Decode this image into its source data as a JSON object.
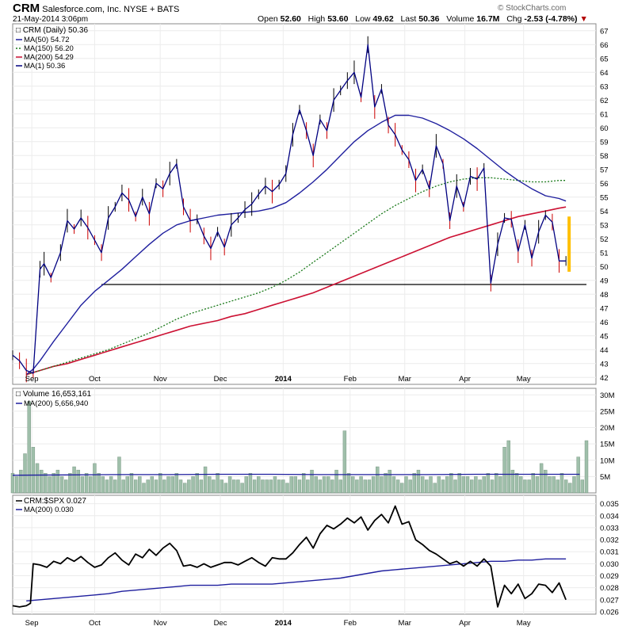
{
  "header": {
    "symbol": "CRM",
    "company": "Salesforce.com, Inc.  NYSE + BATS",
    "timestamp": "21-May-2014 3:06pm",
    "watermark": "© StockCharts.com",
    "open_label": "Open",
    "open": "52.60",
    "high_label": "High",
    "high": "53.60",
    "low_label": "Low",
    "low": "49.62",
    "last_label": "Last",
    "last": "50.36",
    "volume_label": "Volume",
    "volume": "16.7M",
    "chg_label": "Chg",
    "chg": "-2.53 (-4.78%)",
    "chg_arrow": "▼"
  },
  "colors": {
    "price": "#000080",
    "price_up": "#000000",
    "price_down": "#cc0000",
    "ma50": "#1f1f9e",
    "ma150": "#1a7a1a",
    "ma200": "#cc1133",
    "volume_bar": "#9fbfaa",
    "volume_ma": "#1f1f9e",
    "ratio": "#000000",
    "ratio_ma": "#1f1f9e",
    "support": "#000000",
    "highlight": "#ffbf00"
  },
  "chart_data": [
    {
      "type": "line",
      "title": "CRM (Daily) 50.36",
      "legend": [
        {
          "label": "MA(50) 54.72",
          "color": "#1f1f9e",
          "style": "solid"
        },
        {
          "label": "MA(150) 56.20",
          "color": "#1a7a1a",
          "style": "dotted"
        },
        {
          "label": "MA(200) 54.29",
          "color": "#cc1133",
          "style": "solid"
        },
        {
          "label": "MA(1) 50.36",
          "color": "#000080",
          "style": "solid"
        }
      ],
      "ylim": [
        41.5,
        67.5
      ],
      "y_ticks": [
        42,
        43,
        44,
        45,
        46,
        47,
        48,
        49,
        50,
        51,
        52,
        53,
        54,
        55,
        56,
        57,
        58,
        59,
        60,
        61,
        62,
        63,
        64,
        65,
        66,
        67
      ],
      "x_axis": {
        "range": [
          0,
          42
        ],
        "ticks": [
          {
            "label": "Sep",
            "x": 1.4
          },
          {
            "label": "Oct",
            "x": 6.0
          },
          {
            "label": "Nov",
            "x": 10.8
          },
          {
            "label": "Dec",
            "x": 15.2
          },
          {
            "label": "2014",
            "x": 19.8
          },
          {
            "label": "Feb",
            "x": 24.7
          },
          {
            "label": "Mar",
            "x": 28.7
          },
          {
            "label": "Apr",
            "x": 33.1
          },
          {
            "label": "May",
            "x": 37.4
          }
        ]
      },
      "series": [
        {
          "name": "MA(1) 50.36",
          "x": [
            0,
            0.5,
            1,
            1.5,
            2,
            2.3,
            2.8,
            3.5,
            4,
            4.5,
            5,
            5.5,
            6,
            6.5,
            7,
            7.5,
            8,
            8.5,
            9,
            9.5,
            10,
            10.5,
            11,
            11.5,
            12,
            12.5,
            13,
            13.5,
            14,
            14.5,
            15,
            15.5,
            16,
            16.5,
            17,
            17.5,
            18,
            18.5,
            19,
            19.5,
            20,
            20.5,
            21,
            21.5,
            22,
            22.5,
            23,
            23.5,
            24,
            24.5,
            25,
            25.5,
            26,
            26.5,
            27,
            27.5,
            28,
            28.5,
            29,
            29.5,
            30,
            30.5,
            31,
            31.5,
            32,
            32.5,
            33,
            33.5,
            34,
            34.5,
            35,
            35.5,
            36,
            36.5,
            37,
            37.5,
            38,
            38.5,
            39,
            39.5,
            40,
            40.5
          ],
          "values": [
            43.6,
            43.2,
            42.5,
            42.3,
            49.8,
            50.2,
            49.2,
            51.0,
            53.3,
            52.7,
            53.5,
            52.8,
            51.9,
            51.0,
            53.5,
            54.3,
            55.3,
            54.8,
            53.6,
            55.0,
            53.8,
            56.0,
            55.6,
            56.7,
            57.4,
            54.3,
            53.3,
            53.4,
            52.2,
            51.3,
            52.5,
            51.4,
            53.0,
            53.5,
            54.1,
            54.5,
            55.2,
            55.8,
            55.4,
            55.9,
            56.7,
            59.5,
            61.3,
            59.8,
            58.0,
            60.6,
            59.8,
            62.0,
            62.7,
            63.4,
            64.0,
            62.2,
            66.0,
            61.5,
            62.8,
            60.2,
            59.5,
            58.4,
            57.7,
            56.2,
            57.0,
            55.6,
            58.7,
            57.4,
            53.3,
            55.8,
            54.3,
            56.5,
            56.3,
            57.1,
            48.8,
            51.6,
            53.5,
            53.4,
            51.1,
            53.0,
            50.6,
            52.5,
            53.7,
            53.2,
            50.4,
            50.4
          ]
        },
        {
          "name": "MA(50) 54.72",
          "x": [
            1,
            1.5,
            2,
            2.5,
            3,
            4,
            5,
            6,
            7,
            8,
            9,
            10,
            11,
            12,
            13,
            14,
            15,
            16,
            17,
            18,
            19,
            20,
            21,
            22,
            23,
            24,
            25,
            26,
            27,
            28,
            29,
            30,
            31,
            32,
            33,
            34,
            35,
            36,
            37,
            38,
            39,
            40,
            40.5
          ],
          "values": [
            42.2,
            42.6,
            43.2,
            43.9,
            44.6,
            45.9,
            47.2,
            48.2,
            49.0,
            49.8,
            50.7,
            51.6,
            52.4,
            53.0,
            53.3,
            53.5,
            53.7,
            53.8,
            53.9,
            54.0,
            54.2,
            54.6,
            55.3,
            56.1,
            57.0,
            58.0,
            59.0,
            59.8,
            60.4,
            60.9,
            60.9,
            60.7,
            60.3,
            59.8,
            59.2,
            58.5,
            57.7,
            56.9,
            56.2,
            55.6,
            55.1,
            54.9,
            54.72
          ]
        },
        {
          "name": "MA(150) 56.20",
          "x": [
            1,
            2,
            3,
            4,
            5,
            6,
            7,
            8,
            9,
            10,
            11,
            12,
            13,
            14,
            15,
            16,
            17,
            18,
            19,
            20,
            21,
            22,
            23,
            24,
            25,
            26,
            27,
            28,
            29,
            30,
            31,
            32,
            33,
            34,
            35,
            36,
            37,
            38,
            39,
            40,
            40.5
          ],
          "values": [
            42.2,
            42.5,
            42.8,
            43.1,
            43.4,
            43.7,
            44.0,
            44.4,
            44.8,
            45.2,
            45.7,
            46.2,
            46.6,
            46.9,
            47.2,
            47.5,
            47.8,
            48.1,
            48.5,
            49.0,
            49.6,
            50.3,
            51.0,
            51.7,
            52.4,
            53.1,
            53.8,
            54.4,
            54.9,
            55.4,
            55.8,
            56.1,
            56.3,
            56.4,
            56.4,
            56.3,
            56.2,
            56.1,
            56.1,
            56.2,
            56.2
          ]
        },
        {
          "name": "MA(200) 54.29",
          "x": [
            1,
            2,
            3,
            4,
            5,
            6,
            7,
            8,
            9,
            10,
            11,
            12,
            13,
            14,
            15,
            16,
            17,
            18,
            19,
            20,
            21,
            22,
            23,
            24,
            25,
            26,
            27,
            28,
            29,
            30,
            31,
            32,
            33,
            34,
            35,
            36,
            37,
            38,
            39,
            40,
            40.5
          ],
          "values": [
            42.2,
            42.5,
            42.8,
            43.0,
            43.3,
            43.6,
            43.9,
            44.2,
            44.5,
            44.8,
            45.1,
            45.4,
            45.7,
            45.9,
            46.1,
            46.4,
            46.6,
            46.9,
            47.2,
            47.5,
            47.8,
            48.1,
            48.5,
            48.9,
            49.3,
            49.7,
            50.1,
            50.5,
            50.9,
            51.3,
            51.7,
            52.1,
            52.4,
            52.7,
            53.0,
            53.3,
            53.6,
            53.8,
            54.0,
            54.2,
            54.29
          ]
        }
      ],
      "support_line": {
        "value": 48.7,
        "x_start": 6.5,
        "x_end": 42
      }
    },
    {
      "type": "bar",
      "title": "Volume 16,653,161",
      "legend": [
        {
          "label": "MA(200) 5,656,940",
          "color": "#1f1f9e"
        }
      ],
      "ylim": [
        0,
        32
      ],
      "y_ticks": [
        5,
        10,
        15,
        20,
        25,
        30
      ],
      "y_tick_labels": [
        "5M",
        "10M",
        "15M",
        "20M",
        "25M",
        "30M"
      ],
      "ma_values": [
        5.4,
        5.5,
        5.6,
        5.6,
        5.7,
        5.7,
        5.6,
        5.6,
        5.6,
        5.7,
        5.7,
        5.7
      ],
      "values": [
        6,
        5,
        7,
        12,
        28,
        14,
        9,
        7,
        6,
        5,
        6,
        7,
        5,
        4,
        6,
        8,
        7,
        5,
        6,
        5,
        9,
        6,
        5,
        4,
        5,
        4,
        11,
        4,
        5,
        6,
        4,
        5,
        3,
        4,
        5,
        4,
        6,
        4,
        5,
        5,
        6,
        4,
        3,
        4,
        5,
        6,
        4,
        8,
        5,
        4,
        6,
        4,
        3,
        5,
        4,
        4,
        3,
        5,
        6,
        4,
        5,
        4,
        4,
        4,
        5,
        4,
        4,
        3,
        5,
        5,
        4,
        6,
        4,
        7,
        5,
        4,
        5,
        5,
        4,
        7,
        4,
        19,
        6,
        5,
        4,
        5,
        4,
        4,
        5,
        8,
        5,
        6,
        7,
        5,
        4,
        3,
        5,
        4,
        6,
        7,
        5,
        4,
        5,
        3,
        5,
        4,
        5,
        6,
        4,
        6,
        5,
        5,
        4,
        5,
        4,
        5,
        6,
        4,
        6,
        5,
        14,
        16,
        7,
        6,
        5,
        4,
        4,
        6,
        5,
        9,
        7,
        5,
        5,
        4,
        6,
        4,
        3,
        5,
        11,
        4,
        16
      ],
      "x": [
        0,
        0.3,
        0.6,
        0.9,
        1.2,
        1.5,
        1.8,
        2.1,
        2.4,
        2.7,
        3.0,
        3.3,
        3.6,
        3.9,
        4.2,
        4.5,
        4.8,
        5.1,
        5.4,
        5.7,
        6.0,
        6.3,
        6.6,
        6.9,
        7.2,
        7.5,
        7.8,
        8.1,
        8.4,
        8.7,
        9.0,
        9.3,
        9.6,
        9.9,
        10.2,
        10.5,
        10.8,
        11.1,
        11.4,
        11.7,
        12.0,
        12.3,
        12.6,
        12.9,
        13.2,
        13.5,
        13.8,
        14.1,
        14.4,
        14.7,
        15.0,
        15.3,
        15.6,
        15.9,
        16.2,
        16.5,
        16.8,
        17.1,
        17.4,
        17.7,
        18.0,
        18.3,
        18.6,
        18.9,
        19.2,
        19.5,
        19.8,
        20.1,
        20.4,
        20.7,
        21.0,
        21.3,
        21.6,
        21.9,
        22.2,
        22.5,
        22.8,
        23.1,
        23.4,
        23.7,
        24.0,
        24.3,
        24.6,
        24.9,
        25.2,
        25.5,
        25.8,
        26.1,
        26.4,
        26.7,
        27.0,
        27.3,
        27.6,
        27.9,
        28.2,
        28.5,
        28.8,
        29.1,
        29.4,
        29.7,
        30.0,
        30.3,
        30.6,
        30.9,
        31.2,
        31.5,
        31.8,
        32.1,
        32.4,
        32.7,
        33.0,
        33.3,
        33.6,
        33.9,
        34.2,
        34.5,
        34.8,
        35.1,
        35.4,
        35.7,
        36.0,
        36.3,
        36.6,
        36.9,
        37.2,
        37.5,
        37.8,
        38.1,
        38.4,
        38.7,
        39.0,
        39.3,
        39.6,
        39.9,
        40.2,
        40.5,
        40.8,
        41.1,
        41.4,
        41.7,
        42.0
      ]
    },
    {
      "type": "line",
      "title": "CRM:$SPX 0.027",
      "legend": [
        {
          "label": "MA(200) 0.030",
          "color": "#1f1f9e"
        }
      ],
      "ylim": [
        0.0258,
        0.0357
      ],
      "y_ticks": [
        0.026,
        0.027,
        0.028,
        0.029,
        0.03,
        0.031,
        0.032,
        0.033,
        0.034,
        0.035
      ],
      "y_tick_labels": [
        "0.026",
        "0.027",
        "0.028",
        "0.029",
        "0.030",
        "0.031",
        "0.032",
        "0.033",
        "0.034",
        "0.035"
      ],
      "series": [
        {
          "name": "CRM:$SPX",
          "x": [
            0,
            0.5,
            1,
            1.3,
            1.5,
            2,
            2.5,
            3,
            3.5,
            4,
            4.5,
            5,
            5.5,
            6,
            6.5,
            7,
            7.5,
            8,
            8.5,
            9,
            9.5,
            10,
            10.5,
            11,
            11.5,
            12,
            12.5,
            13,
            13.5,
            14,
            14.5,
            15,
            15.5,
            16,
            16.5,
            17,
            17.5,
            18,
            18.5,
            19,
            19.5,
            20,
            20.5,
            21,
            21.5,
            22,
            22.5,
            23,
            23.5,
            24,
            24.5,
            25,
            25.5,
            26,
            26.5,
            27,
            27.5,
            28,
            28.5,
            29,
            29.5,
            30,
            30.5,
            31,
            31.5,
            32,
            32.5,
            33,
            33.5,
            34,
            34.5,
            35,
            35.5,
            36,
            36.5,
            37,
            37.5,
            38,
            38.5,
            39,
            39.5,
            40,
            40.5
          ],
          "values": [
            0.0265,
            0.0264,
            0.0265,
            0.0267,
            0.03,
            0.0299,
            0.0297,
            0.0302,
            0.03,
            0.0305,
            0.0302,
            0.0306,
            0.0301,
            0.0297,
            0.0299,
            0.0305,
            0.0309,
            0.0303,
            0.0299,
            0.0308,
            0.0305,
            0.0312,
            0.0307,
            0.0313,
            0.0317,
            0.0311,
            0.0298,
            0.0299,
            0.0297,
            0.03,
            0.0297,
            0.0299,
            0.0301,
            0.0301,
            0.0299,
            0.0302,
            0.0305,
            0.0301,
            0.0298,
            0.0305,
            0.0304,
            0.0304,
            0.0309,
            0.0316,
            0.0322,
            0.0313,
            0.0325,
            0.0332,
            0.0329,
            0.0333,
            0.0338,
            0.0334,
            0.0339,
            0.0328,
            0.0336,
            0.0341,
            0.0334,
            0.0348,
            0.0333,
            0.0335,
            0.032,
            0.0316,
            0.0311,
            0.0308,
            0.0304,
            0.03,
            0.0302,
            0.0298,
            0.0302,
            0.0298,
            0.0304,
            0.0298,
            0.0264,
            0.0282,
            0.0275,
            0.0283,
            0.0271,
            0.0275,
            0.0283,
            0.0282,
            0.0276,
            0.0284,
            0.027
          ]
        },
        {
          "name": "MA(200) 0.030",
          "x": [
            1,
            2,
            3,
            4,
            5,
            6,
            7,
            8,
            9,
            10,
            11,
            12,
            13,
            14,
            15,
            16,
            17,
            18,
            19,
            20,
            21,
            22,
            23,
            24,
            25,
            26,
            27,
            28,
            29,
            30,
            31,
            32,
            33,
            34,
            35,
            36,
            37,
            38,
            39,
            40,
            40.5
          ],
          "values": [
            0.0269,
            0.027,
            0.0271,
            0.0272,
            0.0273,
            0.0274,
            0.0275,
            0.0277,
            0.0278,
            0.0279,
            0.028,
            0.0281,
            0.0282,
            0.0282,
            0.0282,
            0.0283,
            0.0283,
            0.0283,
            0.0283,
            0.0284,
            0.0285,
            0.0286,
            0.0287,
            0.0288,
            0.029,
            0.0292,
            0.0294,
            0.0295,
            0.0296,
            0.0297,
            0.0298,
            0.0299,
            0.03,
            0.0301,
            0.0302,
            0.0302,
            0.0303,
            0.0303,
            0.0304,
            0.0304,
            0.0304
          ]
        }
      ]
    }
  ]
}
